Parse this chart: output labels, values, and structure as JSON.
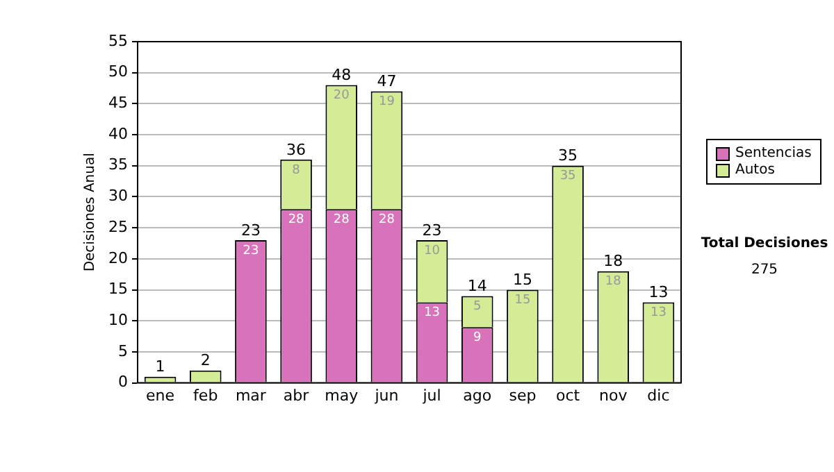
{
  "chart_data": {
    "type": "bar",
    "ylabel": "Decisiones Anual",
    "categories": [
      "ene",
      "feb",
      "mar",
      "abr",
      "may",
      "jun",
      "jul",
      "ago",
      "sep",
      "oct",
      "nov",
      "dic"
    ],
    "stacked": true,
    "series": [
      {
        "name": "Sentencias",
        "color": "#d873bb",
        "values": [
          0,
          0,
          23,
          28,
          28,
          28,
          13,
          9,
          0,
          0,
          0,
          0
        ],
        "value_labels": [
          null,
          null,
          "23",
          "28",
          "28",
          "28",
          "13",
          "9",
          null,
          null,
          null,
          null
        ]
      },
      {
        "name": "Autos",
        "color": "#d5ec96",
        "values": [
          1,
          2,
          0,
          8,
          20,
          19,
          10,
          5,
          15,
          35,
          18,
          13
        ],
        "value_labels": [
          null,
          null,
          null,
          "8",
          "20",
          "19",
          "10",
          "5",
          "15",
          "35",
          "18",
          "13"
        ]
      }
    ],
    "totals": [
      "1",
      "2",
      "23",
      "36",
      "48",
      "47",
      "23",
      "14",
      "15",
      "35",
      "18",
      "13"
    ],
    "ylim": [
      0,
      55
    ],
    "yticks": [
      0,
      5,
      10,
      15,
      20,
      25,
      30,
      35,
      40,
      45,
      50,
      55
    ],
    "grid": "y",
    "legend": "right",
    "annotations": [
      "Total Decisiones",
      "275"
    ]
  }
}
